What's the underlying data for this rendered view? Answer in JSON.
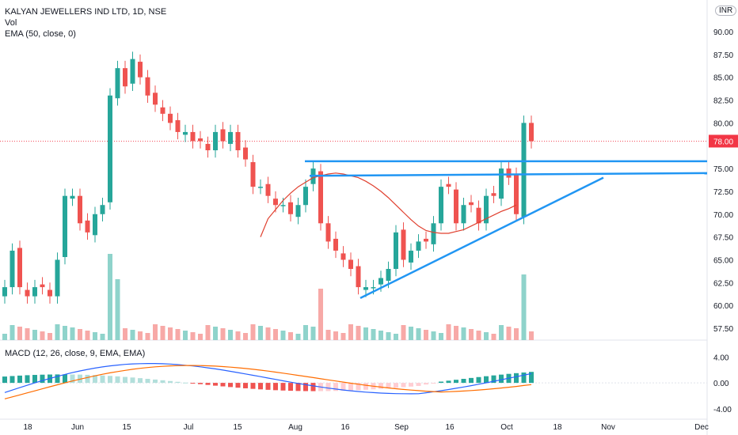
{
  "legend": {
    "title": "KALYAN JEWELLERS IND LTD, 1D, NSE",
    "vol": "Vol",
    "ema": "EMA (50, close, 0)",
    "macd": "MACD (12, 26, close, 9, EMA, EMA)"
  },
  "currency_badge": "INR",
  "price_axis": {
    "ticks": [
      "90.00",
      "87.50",
      "85.00",
      "82.50",
      "80.00",
      "75.00",
      "72.50",
      "70.00",
      "67.50",
      "65.00",
      "62.50",
      "60.00",
      "57.50"
    ],
    "last_price_label": "78.00",
    "last_price": 78.0,
    "last_price_color": "#f23645"
  },
  "macd_axis": {
    "ticks": [
      "4.00",
      "0.00",
      "-4.00"
    ]
  },
  "time_axis": {
    "labels": [
      "18",
      "Jun",
      "15",
      "Jul",
      "15",
      "Aug",
      "16",
      "Sep",
      "16",
      "Oct",
      "18",
      "Nov",
      "Dec"
    ]
  },
  "colors": {
    "up": "#26a69a",
    "down": "#ef5350",
    "vol_up": "#8fd3cb",
    "vol_down": "#f7a9a7",
    "ema": "#e0402f",
    "trend": "#2196f3",
    "macd": "#2962ff",
    "signal": "#ff6d00"
  },
  "chart_data": {
    "type": "candlestick",
    "title": "KALYAN JEWELLERS IND LTD, 1D, NSE",
    "ylim": [
      56,
      92
    ],
    "candles_close": [
      62,
      66,
      62,
      61,
      62,
      62,
      61,
      65,
      72,
      72,
      69,
      68,
      70,
      71,
      83,
      86,
      84,
      87,
      85,
      83,
      82,
      81,
      80,
      79,
      79,
      78,
      78,
      77,
      79,
      78,
      79,
      77,
      76,
      73,
      73,
      72,
      71,
      71,
      70,
      71,
      73,
      75,
      69,
      67,
      66,
      65,
      64,
      62,
      62,
      62,
      63,
      64,
      68,
      65,
      66,
      67,
      67,
      69,
      73,
      73,
      69,
      71,
      71,
      69,
      72,
      72,
      75,
      74,
      70,
      80,
      78
    ],
    "ema50": [
      null,
      null,
      null,
      null,
      null,
      null,
      null,
      null,
      null,
      null,
      null,
      null,
      null,
      null,
      null,
      null,
      null,
      67.5,
      69.5,
      70.5,
      71.5,
      72.3,
      73,
      73.5,
      74,
      74.2,
      74.4,
      74.5,
      74.4,
      74.2,
      74,
      73.6,
      73.1,
      72.5,
      71.8,
      71,
      70.2,
      69.4,
      68.7,
      68.2,
      68,
      67.9,
      67.9,
      68.1,
      68.3,
      68.7,
      69.1,
      69.5,
      69.9,
      70.3,
      70.6,
      71
    ],
    "trendlines": [
      {
        "from": [
          "Aug",
          75.8
        ],
        "to": [
          "end",
          75.8
        ]
      },
      {
        "from": [
          "Aug",
          74.2
        ],
        "to": [
          "end",
          74.5
        ]
      },
      {
        "from": [
          "16 Aug",
          60.8
        ],
        "to": [
          "Oct",
          74.0
        ]
      }
    ],
    "macd_ylim": [
      -5,
      6
    ]
  }
}
